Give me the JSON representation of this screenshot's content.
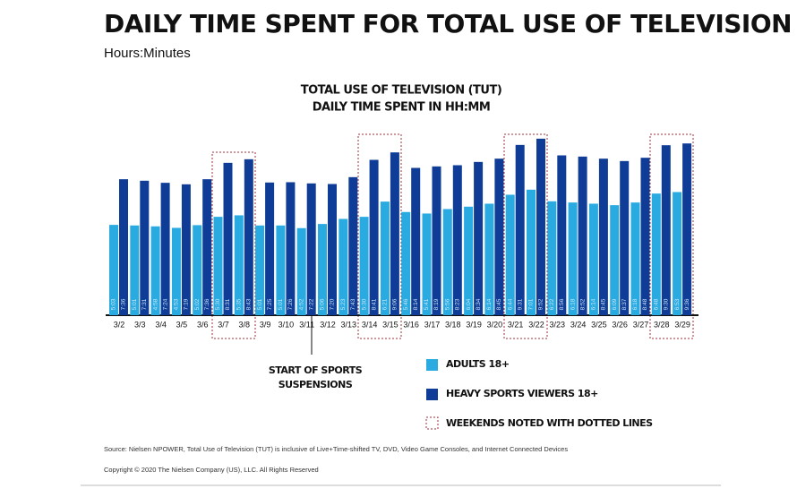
{
  "chart_data": {
    "type": "bar",
    "title": "DAILY TIME SPENT FOR TOTAL USE OF TELEVISION",
    "subtitle": "Hours:Minutes",
    "chart_heading": [
      "TOTAL USE OF TELEVISION (TUT)",
      "DAILY TIME SPENT IN HH:MM"
    ],
    "categories": [
      "3/2",
      "3/3",
      "3/4",
      "3/5",
      "3/6",
      "3/7",
      "3/8",
      "3/9",
      "3/10",
      "3/11",
      "3/12",
      "3/13",
      "3/14",
      "3/15",
      "3/16",
      "3/17",
      "3/18",
      "3/19",
      "3/20",
      "3/21",
      "3/22",
      "3/23",
      "3/24",
      "3/25",
      "3/26",
      "3/27",
      "3/28",
      "3/29"
    ],
    "series": [
      {
        "name": "ADULTS 18+",
        "color": "#29abe2",
        "values": [
          303,
          301,
          298,
          293,
          302,
          330,
          335,
          301,
          301,
          292,
          306,
          323,
          330,
          381,
          346,
          341,
          356,
          364,
          374,
          404,
          421,
          382,
          378,
          374,
          369,
          378,
          408,
          413
        ],
        "value_labels": [
          "5:03",
          "5:01",
          "4:58",
          "4:53",
          "5:02",
          "5:30",
          "5:35",
          "5:01",
          "5:01",
          "4:52",
          "5:06",
          "5:23",
          "5:30",
          "6:21",
          "5:46",
          "5:41",
          "5:56",
          "6:04",
          "6:14",
          "6:44",
          "7:01",
          "6:22",
          "6:18",
          "6:14",
          "6:09",
          "6:18",
          "6:48",
          "6:53"
        ]
      },
      {
        "name": "HEAVY SPORTS VIEWERS 18+",
        "color": "#0e3c96",
        "values": [
          456,
          451,
          444,
          439,
          456,
          511,
          523,
          445,
          446,
          442,
          440,
          463,
          521,
          546,
          494,
          499,
          503,
          514,
          525,
          571,
          592,
          536,
          532,
          525,
          517,
          528,
          570,
          576
        ],
        "value_labels": [
          "7:36",
          "7:31",
          "7:24",
          "7:19",
          "7:36",
          "8:31",
          "8:43",
          "7:25",
          "7:26",
          "7:22",
          "7:20",
          "7:43",
          "8:41",
          "9:06",
          "8:14",
          "8:19",
          "8:23",
          "8:34",
          "8:45",
          "9:31",
          "9:52",
          "8:56",
          "8:52",
          "8:45",
          "8:37",
          "8:48",
          "9:30",
          "9:36"
        ]
      }
    ],
    "annotation": [
      "START OF SPORTS",
      "SUSPENSIONS"
    ],
    "legend_note": "WEEKENDS NOTED WITH DOTTED LINES",
    "source": "Source: Nielsen NPOWER, Total Use of Television (TUT) is inclusive of Live+Time-shifted TV, DVD, Video Game Consoles, and Internet Connected Devices",
    "copyright": "Copyright © 2020 The Nielsen Company (US), LLC. All Rights Reserved"
  }
}
